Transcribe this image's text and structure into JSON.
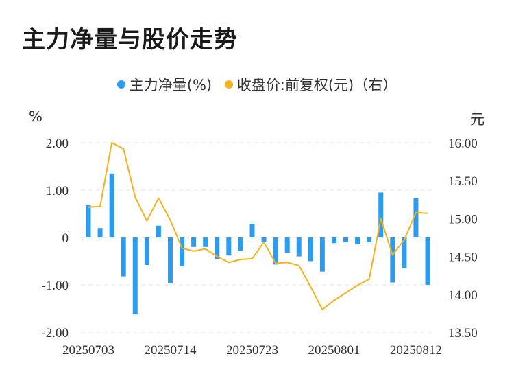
{
  "title": "主力净量与股价走势",
  "legend": {
    "bar_label": "主力净量(%)",
    "line_label": "收盘价:前复权(元)（右）",
    "bar_color": "#2b9cf0",
    "line_color": "#f5b21a"
  },
  "chart_data": {
    "type": "bar+line",
    "left_unit": "%",
    "right_unit": "元",
    "left_ylim": [
      -2.0,
      2.0
    ],
    "right_ylim": [
      13.5,
      16.0
    ],
    "left_ticks": [
      "2.00",
      "1.00",
      "0",
      "-1.00",
      "-2.00"
    ],
    "right_ticks": [
      "16.00",
      "15.50",
      "15.00",
      "14.50",
      "14.00",
      "13.50"
    ],
    "x_tick_labels": [
      "20250703",
      "20250714",
      "20250723",
      "20250801",
      "20250812"
    ],
    "x_tick_index": [
      0,
      7,
      14,
      21,
      28
    ],
    "bar_values": [
      0.68,
      0.2,
      1.35,
      -0.82,
      -1.62,
      -0.58,
      0.25,
      -0.97,
      -0.6,
      -0.2,
      -0.2,
      -0.45,
      -0.38,
      -0.28,
      0.29,
      -0.1,
      -0.57,
      -0.32,
      -0.4,
      -0.5,
      -0.72,
      -0.12,
      -0.1,
      -0.14,
      -0.1,
      0.95,
      -0.95,
      -0.65,
      0.83,
      -1.0
    ],
    "line_values": [
      15.15,
      15.16,
      16.0,
      15.92,
      15.28,
      14.97,
      15.27,
      14.98,
      14.61,
      14.57,
      14.6,
      14.5,
      14.42,
      14.46,
      14.47,
      14.69,
      14.41,
      14.42,
      14.38,
      14.1,
      13.8,
      13.92,
      14.02,
      14.12,
      14.2,
      15.0,
      14.52,
      14.72,
      15.08,
      15.07
    ]
  }
}
